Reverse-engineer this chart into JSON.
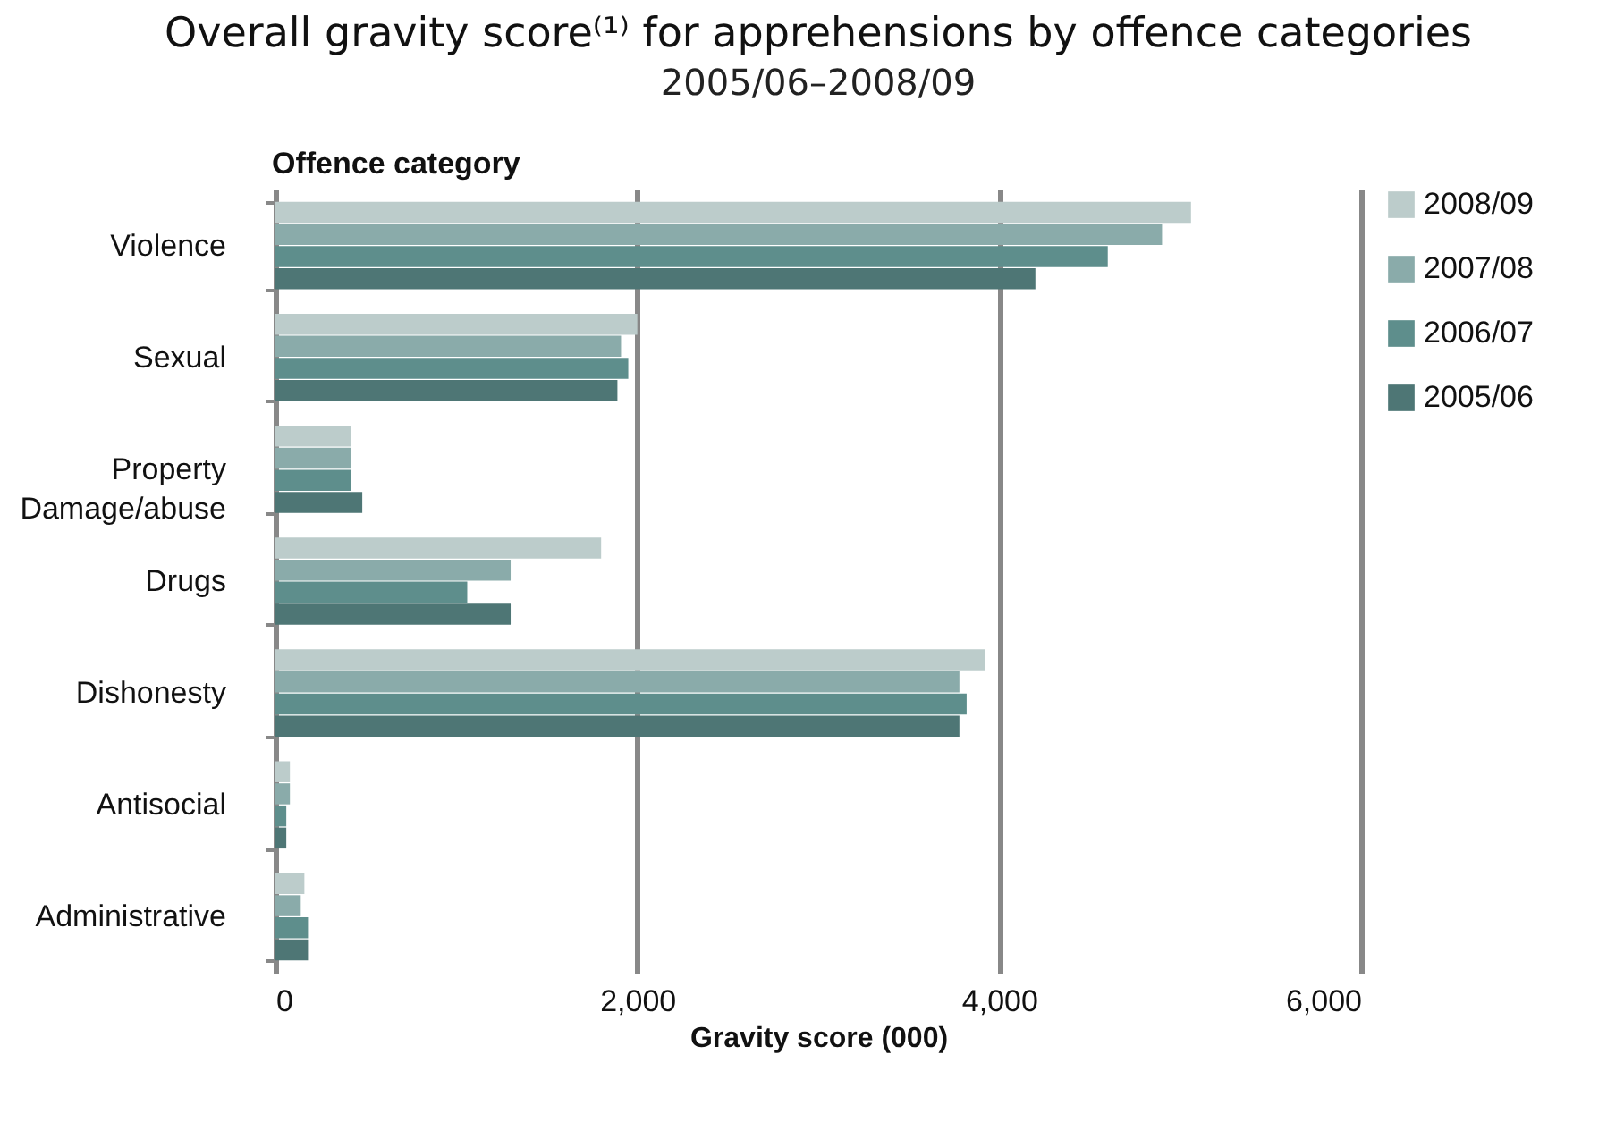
{
  "chart_data": {
    "type": "bar",
    "orientation": "horizontal",
    "title": "Overall gravity score⁽¹⁾ for apprehensions by offence categories",
    "subtitle": "2005/06–2008/09",
    "xlabel": "Gravity score (000)",
    "ylabel": "Offence category",
    "categories": [
      "Violence",
      "Sexual",
      "Property Damage/abuse",
      "Drugs",
      "Dishonesty",
      "Antisocial",
      "Administrative"
    ],
    "series": [
      {
        "name": "2008/09",
        "color": "#bccccb",
        "values": [
          5060,
          2000,
          420,
          1800,
          3920,
          80,
          160
        ]
      },
      {
        "name": "2007/08",
        "color": "#8aabaa",
        "values": [
          4900,
          1910,
          420,
          1300,
          3780,
          80,
          140
        ]
      },
      {
        "name": "2006/07",
        "color": "#5e8e8c",
        "values": [
          4600,
          1950,
          420,
          1060,
          3820,
          60,
          180
        ]
      },
      {
        "name": "2005/06",
        "color": "#4e7675",
        "values": [
          4200,
          1890,
          480,
          1300,
          3780,
          60,
          180
        ]
      }
    ],
    "xlim": [
      0,
      6000
    ],
    "xticks": [
      {
        "value": 0,
        "label": "0"
      },
      {
        "value": 2000,
        "label": "2,000"
      },
      {
        "value": 4000,
        "label": "4,000"
      },
      {
        "value": 6000,
        "label": "6,000"
      }
    ],
    "grid": "x",
    "legend": "right"
  }
}
